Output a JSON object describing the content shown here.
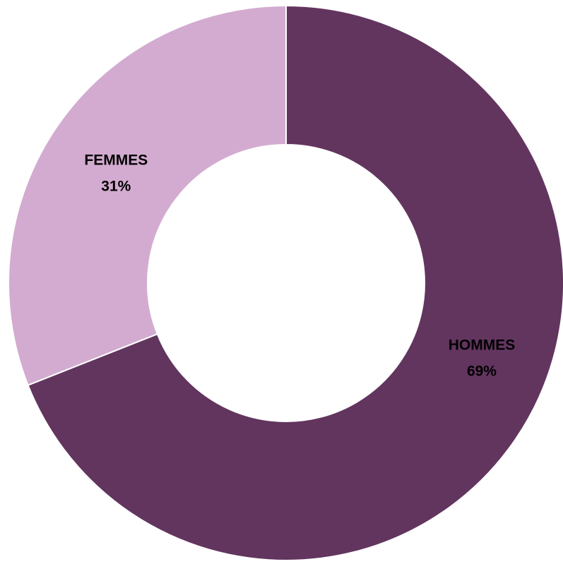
{
  "chart_data": {
    "type": "pie",
    "variant": "donut",
    "categories": [
      "HOMMES",
      "FEMMES"
    ],
    "values": [
      69,
      31
    ],
    "labels": [
      "69%",
      "31%"
    ],
    "colors": [
      "#62355f",
      "#d3abd0"
    ],
    "title": "",
    "legend": "none"
  }
}
